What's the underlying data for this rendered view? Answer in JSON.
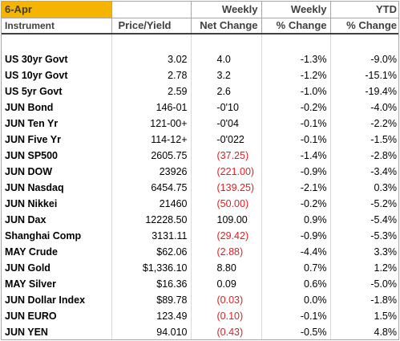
{
  "header": {
    "date": "6-Apr",
    "instrument": "Instrument",
    "price_yield": "Price/Yield",
    "weekly_1": "Weekly",
    "weekly_2": "Net Change",
    "weekly_pct_1": "Weekly",
    "weekly_pct_2": "% Change",
    "ytd_1": "YTD",
    "ytd_2": "% Change"
  },
  "rows": [
    {
      "name": "US 30yr Govt",
      "price": "3.02",
      "net": "4.0",
      "net_negative": false,
      "weekly_pct": "-1.3%",
      "ytd_pct": "-9.0%"
    },
    {
      "name": "US 10yr Govt",
      "price": "2.78",
      "net": "3.2",
      "net_negative": false,
      "weekly_pct": "-1.2%",
      "ytd_pct": "-15.1%"
    },
    {
      "name": "US 5yr   Govt",
      "price": "2.59",
      "net": "2.6",
      "net_negative": false,
      "weekly_pct": "-1.0%",
      "ytd_pct": "-19.4%"
    },
    {
      "name": "JUN Bond",
      "price": "146-01",
      "net": "-0'10",
      "net_negative": false,
      "weekly_pct": "-0.2%",
      "ytd_pct": "-4.0%"
    },
    {
      "name": "JUN Ten Yr",
      "price": "121-00+",
      "net": "-0'04",
      "net_negative": false,
      "weekly_pct": "-0.1%",
      "ytd_pct": "-2.2%"
    },
    {
      "name": "JUN Five Yr",
      "price": "114-12+",
      "net": "-0'022",
      "net_negative": false,
      "weekly_pct": "-0.1%",
      "ytd_pct": "-1.5%"
    },
    {
      "name": "JUN SP500",
      "price": "2605.75",
      "net": "(37.25)",
      "net_negative": true,
      "weekly_pct": "-1.4%",
      "ytd_pct": "-2.8%"
    },
    {
      "name": "JUN DOW",
      "price": "23926",
      "net": "(221.00)",
      "net_negative": true,
      "weekly_pct": "-0.9%",
      "ytd_pct": "-3.4%"
    },
    {
      "name": "JUN Nasdaq",
      "price": "6454.75",
      "net": "(139.25)",
      "net_negative": true,
      "weekly_pct": "-2.1%",
      "ytd_pct": "0.3%"
    },
    {
      "name": "JUN Nikkei",
      "price": "21460",
      "net": "(50.00)",
      "net_negative": true,
      "weekly_pct": "-0.2%",
      "ytd_pct": "-5.2%"
    },
    {
      "name": "JUN Dax",
      "price": "12228.50",
      "net": "109.00",
      "net_negative": false,
      "weekly_pct": "0.9%",
      "ytd_pct": "-5.4%"
    },
    {
      "name": "Shanghai Comp",
      "price": "3131.11",
      "net": "(29.42)",
      "net_negative": true,
      "weekly_pct": "-0.9%",
      "ytd_pct": "-5.3%"
    },
    {
      "name": "MAY Crude",
      "price": "$62.06",
      "net": "(2.88)",
      "net_negative": true,
      "weekly_pct": "-4.4%",
      "ytd_pct": "3.3%"
    },
    {
      "name": "JUN Gold",
      "price": "$1,336.10",
      "net": "8.80",
      "net_negative": false,
      "weekly_pct": "0.7%",
      "ytd_pct": "1.2%"
    },
    {
      "name": "MAY Silver",
      "price": "$16.36",
      "net": "0.09",
      "net_negative": false,
      "weekly_pct": "0.6%",
      "ytd_pct": "-5.0%"
    },
    {
      "name": "JUN Dollar Index",
      "price": "$89.78",
      "net": "(0.03)",
      "net_negative": true,
      "weekly_pct": "0.0%",
      "ytd_pct": "-1.8%"
    },
    {
      "name": "JUN EURO",
      "price": "123.49",
      "net": "(0.10)",
      "net_negative": true,
      "weekly_pct": "-0.1%",
      "ytd_pct": "1.5%"
    },
    {
      "name": "JUN YEN",
      "price": "94.010",
      "net": "(0.43)",
      "net_negative": true,
      "weekly_pct": "-0.5%",
      "ytd_pct": "4.8%"
    }
  ],
  "colors": {
    "header_accent": "#f4b400",
    "negative": "#e02020"
  }
}
